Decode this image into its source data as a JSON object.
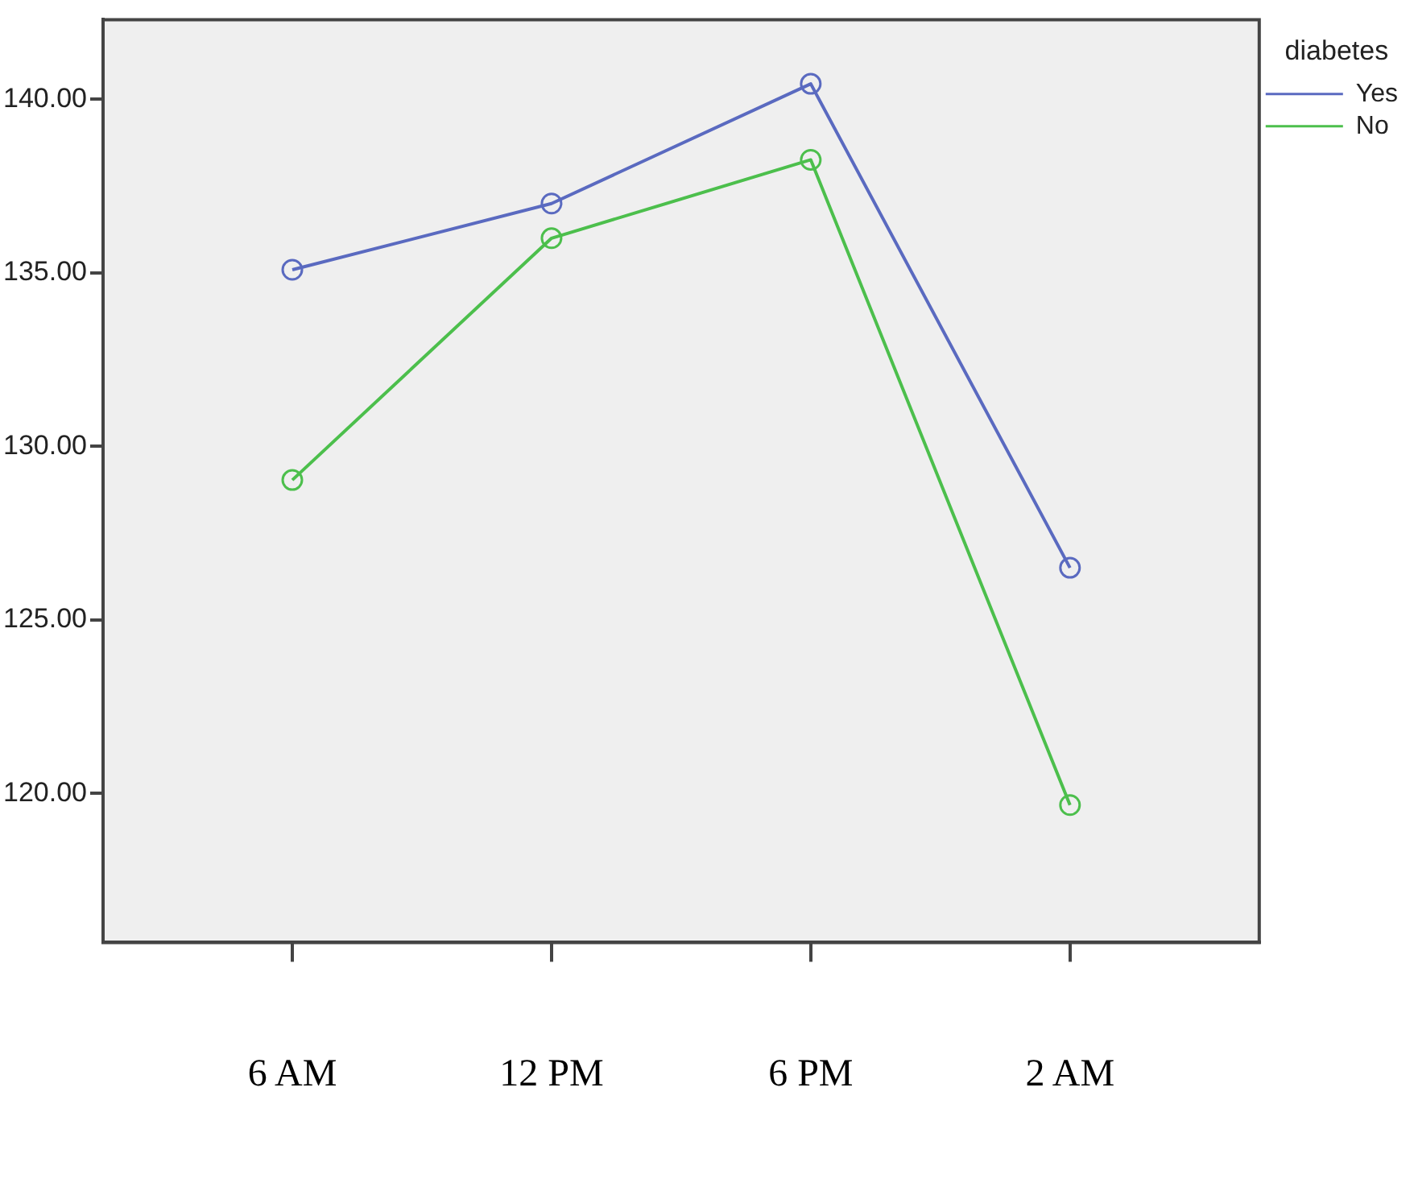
{
  "chart_data": {
    "type": "line",
    "legend_title": "diabetes",
    "categories": [
      "6 AM",
      "12 PM",
      "6 PM",
      "2 AM"
    ],
    "series": [
      {
        "name": "Yes",
        "color": "#5a6ac0",
        "values": [
          135.09,
          137.0,
          140.45,
          126.5
        ]
      },
      {
        "name": "No",
        "color": "#4cbf4c",
        "values": [
          129.03,
          136.0,
          138.26,
          119.66
        ]
      }
    ],
    "ylim": [
      115.7,
      142.3
    ],
    "yticks": [
      {
        "value": 120,
        "label": "120.00"
      },
      {
        "value": 125,
        "label": "125.00"
      },
      {
        "value": 130,
        "label": "130.00"
      },
      {
        "value": 135,
        "label": "135.00"
      },
      {
        "value": 140,
        "label": "140.00"
      }
    ],
    "grid": false,
    "legend": "top right",
    "marker": "circle",
    "line_style": "solid"
  }
}
